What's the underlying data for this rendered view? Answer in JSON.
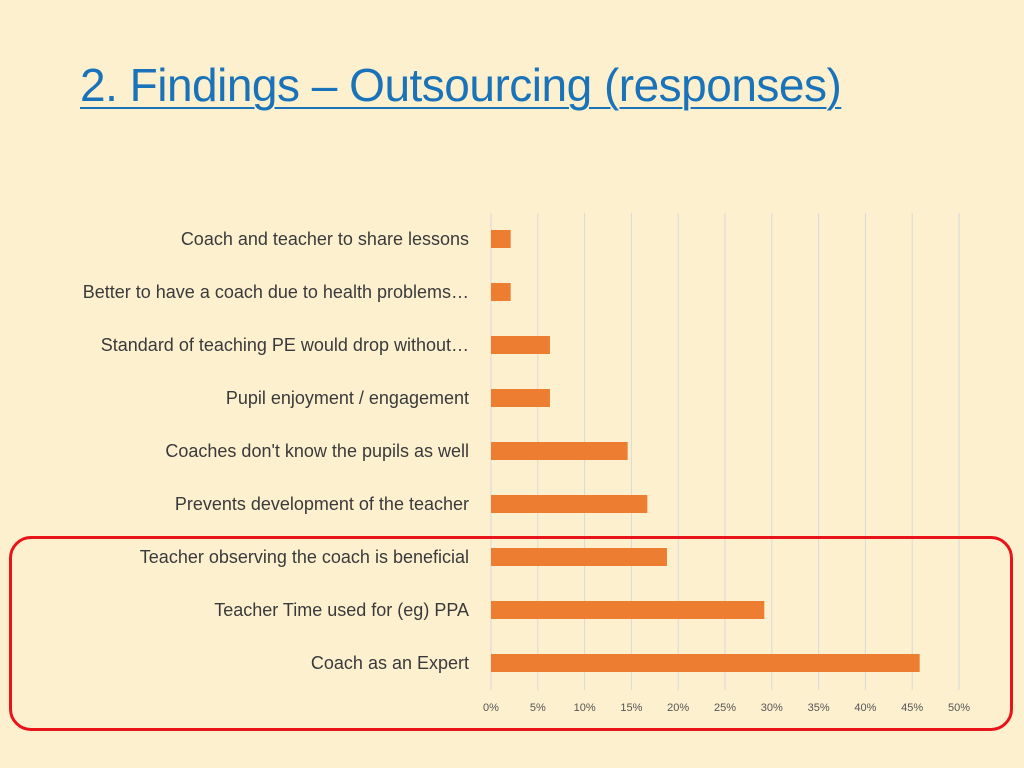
{
  "slide": {
    "title": "2. Findings – Outsourcing (responses)"
  },
  "chart_data": {
    "type": "bar",
    "orientation": "horizontal",
    "title": "",
    "categories": [
      "Coach and teacher to share lessons",
      "Better to have a coach due to health problems…",
      "Standard of teaching PE would drop without…",
      "Pupil enjoyment / engagement",
      "Coaches don't know the pupils as well",
      "Prevents development of the teacher",
      "Teacher observing the coach is beneficial",
      "Teacher Time used for (eg) PPA",
      "Coach as an Expert"
    ],
    "values": [
      2.1,
      2.1,
      6.3,
      6.3,
      14.6,
      16.7,
      18.8,
      29.2,
      45.8
    ],
    "x_ticks": [
      "0%",
      "5%",
      "10%",
      "15%",
      "20%",
      "25%",
      "30%",
      "35%",
      "40%",
      "45%",
      "50%"
    ],
    "xlim": [
      0,
      50
    ],
    "grid": true,
    "bar_color": "#ed7d31",
    "highlight": {
      "color": "#e8141a",
      "categories": [
        "Teacher observing the coach is beneficial",
        "Teacher Time used for (eg) PPA",
        "Coach as an Expert"
      ]
    }
  }
}
